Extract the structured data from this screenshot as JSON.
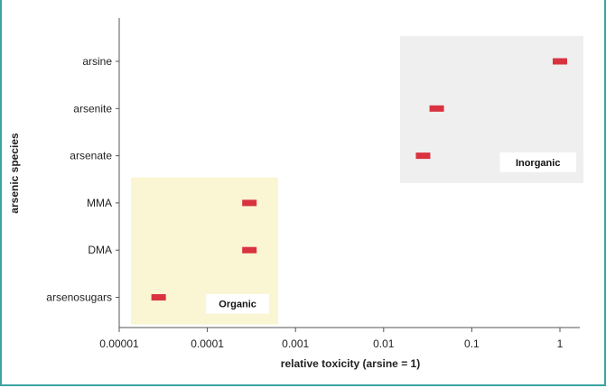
{
  "header": {
    "fragment": ""
  },
  "chart_data": {
    "type": "scatter",
    "title": "",
    "xlabel": "relative toxicity (arsine = 1)",
    "ylabel": "arsenic species",
    "x_scale": "log",
    "xlim": [
      1e-05,
      1.4
    ],
    "x_ticks": [
      {
        "value": 1e-05,
        "label": "0.00001"
      },
      {
        "value": 0.0001,
        "label": "0.0001"
      },
      {
        "value": 0.001,
        "label": "0.001"
      },
      {
        "value": 0.01,
        "label": "0.01"
      },
      {
        "value": 0.1,
        "label": "0.1"
      },
      {
        "value": 1,
        "label": "1"
      }
    ],
    "categories": [
      "arsine",
      "arsenite",
      "arsenate",
      "MMA",
      "DMA",
      "arsenosugars"
    ],
    "values": [
      1.0,
      0.04,
      0.028,
      0.0003,
      0.0003,
      2.8e-05
    ],
    "groups": [
      {
        "name": "Inorganic",
        "members": [
          "arsine",
          "arsenite",
          "arsenate"
        ],
        "color": "#efefef"
      },
      {
        "name": "Organic",
        "members": [
          "MMA",
          "DMA",
          "arsenosugars"
        ],
        "color": "#faf5d2"
      }
    ],
    "marker_color": "#d93340",
    "grid": false
  }
}
